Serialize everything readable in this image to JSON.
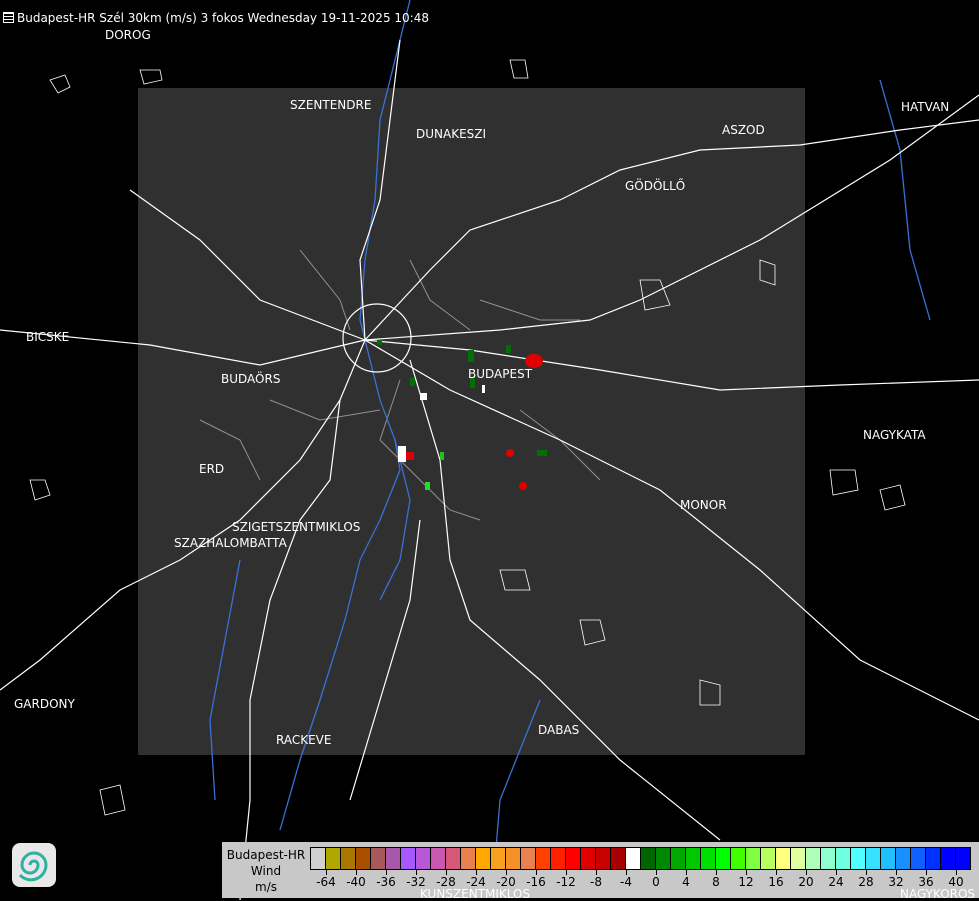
{
  "header": {
    "title": "Budapest-HR Szél 30km (m/s) 3 fokos Wednesday 19-11-2025 10:48",
    "icon": "menu-icon"
  },
  "cities": [
    {
      "name": "DOROG"
    },
    {
      "name": "SZENTENDRE"
    },
    {
      "name": "DUNAKESZI"
    },
    {
      "name": "HATVAN"
    },
    {
      "name": "ASZOD"
    },
    {
      "name": "GÖDÖLLŐ"
    },
    {
      "name": "BICSKE"
    },
    {
      "name": "BUDAPEST"
    },
    {
      "name": "BUDAÖRS"
    },
    {
      "name": "NAGYKATA"
    },
    {
      "name": "ERD"
    },
    {
      "name": "MONOR"
    },
    {
      "name": "SZIGETSZENTMIKLOS"
    },
    {
      "name": "SZAZHALOMBATTA"
    },
    {
      "name": "GARDONY"
    },
    {
      "name": "DABAS"
    },
    {
      "name": "RACKEVE"
    },
    {
      "name": "KUNSZENTMIKLOS"
    },
    {
      "name": "NAGYKOROS"
    }
  ],
  "legend": {
    "station": "Budapest-HR",
    "quantity": "Wind",
    "unit": "m/s",
    "ticks": [
      "-64",
      "-40",
      "-36",
      "-32",
      "-28",
      "-24",
      "-20",
      "-16",
      "-12",
      "-8",
      "-4",
      "0",
      "4",
      "8",
      "12",
      "16",
      "20",
      "24",
      "28",
      "32",
      "36",
      "40"
    ],
    "colors": [
      "#d0d0d0",
      "#b0a800",
      "#a87800",
      "#a85000",
      "#a85858",
      "#a858a8",
      "#a858ff",
      "#b858d8",
      "#c858b0",
      "#d85878",
      "#e88050",
      "#ffa800",
      "#f8a020",
      "#f89028",
      "#e88050",
      "#ff4000",
      "#ff2000",
      "#ff0000",
      "#e00000",
      "#c80000",
      "#a80000",
      "#ffffff",
      "#006400",
      "#008800",
      "#00a800",
      "#00c800",
      "#00e000",
      "#00ff00",
      "#40ff00",
      "#80ff40",
      "#b8ff60",
      "#ffff80",
      "#e0ffa0",
      "#b0ffb8",
      "#90ffd0",
      "#70ffe0",
      "#50ffff",
      "#38e0ff",
      "#20c0ff",
      "#1890ff",
      "#1060ff",
      "#0030ff",
      "#0000ff",
      "#0000ff"
    ]
  },
  "colors": {
    "background": "#000000",
    "radar_area": "#303030",
    "roads": "#ffffff",
    "rivers": "#3a70d8",
    "borders": "#909090"
  }
}
